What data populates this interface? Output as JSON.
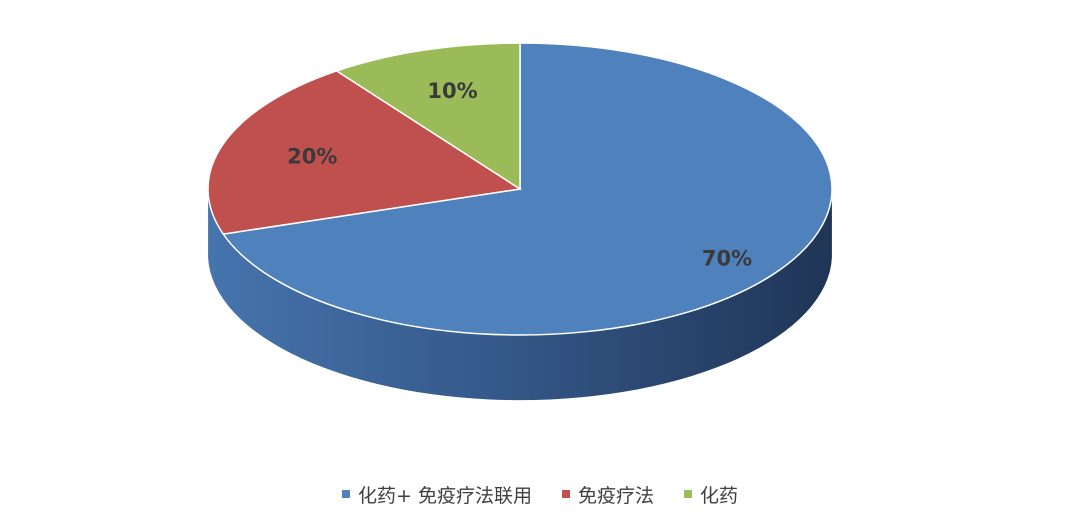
{
  "chart_data": {
    "type": "pie",
    "style": "3d",
    "title": "",
    "series": [
      {
        "name": "化药+ 免疫疗法联用",
        "value": 70,
        "label": "70%",
        "color": "#4f81bd"
      },
      {
        "name": "免疫疗法",
        "value": 20,
        "label": "20%",
        "color": "#c0504d"
      },
      {
        "name": "化药",
        "value": 10,
        "label": "10%",
        "color": "#9bbb59"
      }
    ],
    "legend_position": "bottom"
  }
}
